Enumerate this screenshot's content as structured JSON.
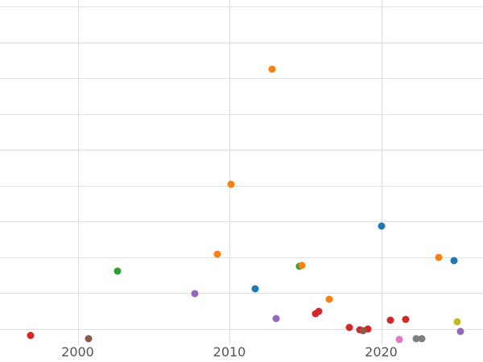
{
  "chart": {
    "title": "",
    "background_color": "#ffffff",
    "grid_color": "#e0e0e0",
    "tick_label_color": "#555555"
  },
  "chart_data": {
    "type": "scatter",
    "title": "",
    "xlabel": "",
    "ylabel": "",
    "grid": true,
    "legend": false,
    "x_axis": {
      "ticks": [
        2000,
        2010,
        2020
      ],
      "tick_labels": [
        "2000",
        "2010",
        "2020"
      ],
      "visible_range": [
        1994.9,
        2026.7
      ]
    },
    "y_axis": {
      "tick_labels_visible": false,
      "gridline_units": [
        0,
        1,
        2,
        3,
        4,
        5,
        6,
        7,
        8,
        9
      ],
      "visible_range": [
        -0.45,
        9.2
      ],
      "note": "y tick labels are cropped off the left edge; y values below are in gridline units counted up from the lowest visible gridline"
    },
    "series": [
      {
        "name": "blue",
        "color": "#1f77b4",
        "points": [
          [
            2011.7,
            1.12
          ],
          [
            2020.0,
            2.87
          ],
          [
            2024.8,
            1.91
          ]
        ]
      },
      {
        "name": "green",
        "color": "#2ca02c",
        "points": [
          [
            2002.6,
            1.61
          ],
          [
            2014.6,
            1.75
          ]
        ]
      },
      {
        "name": "orange",
        "color": "#ff7f0e",
        "points": [
          [
            2009.2,
            2.09
          ],
          [
            2010.1,
            4.04
          ],
          [
            2012.8,
            7.25
          ],
          [
            2014.8,
            1.77
          ],
          [
            2016.6,
            0.83
          ],
          [
            2023.8,
            2.0
          ]
        ]
      },
      {
        "name": "red",
        "color": "#d62728",
        "points": [
          [
            1996.9,
            -0.18
          ],
          [
            2015.7,
            0.43
          ],
          [
            2015.9,
            0.49
          ],
          [
            2017.9,
            0.04
          ],
          [
            2018.6,
            -0.02
          ],
          [
            2019.1,
            0.0
          ],
          [
            2020.6,
            0.25
          ],
          [
            2021.6,
            0.27
          ]
        ]
      },
      {
        "name": "purple",
        "color": "#9467bd",
        "points": [
          [
            2007.7,
            0.99
          ],
          [
            2013.1,
            0.29
          ],
          [
            2025.2,
            -0.07
          ]
        ]
      },
      {
        "name": "brown",
        "color": "#8c564b",
        "points": [
          [
            2000.7,
            -0.27
          ],
          [
            2018.8,
            -0.04
          ]
        ]
      },
      {
        "name": "pink",
        "color": "#e377c2",
        "points": [
          [
            2021.2,
            -0.29
          ]
        ]
      },
      {
        "name": "gray",
        "color": "#7f7f7f",
        "points": [
          [
            2022.3,
            -0.27
          ],
          [
            2022.7,
            -0.27
          ]
        ]
      },
      {
        "name": "olive",
        "color": "#bcbd22",
        "points": [
          [
            2025.0,
            0.2
          ]
        ]
      }
    ]
  }
}
